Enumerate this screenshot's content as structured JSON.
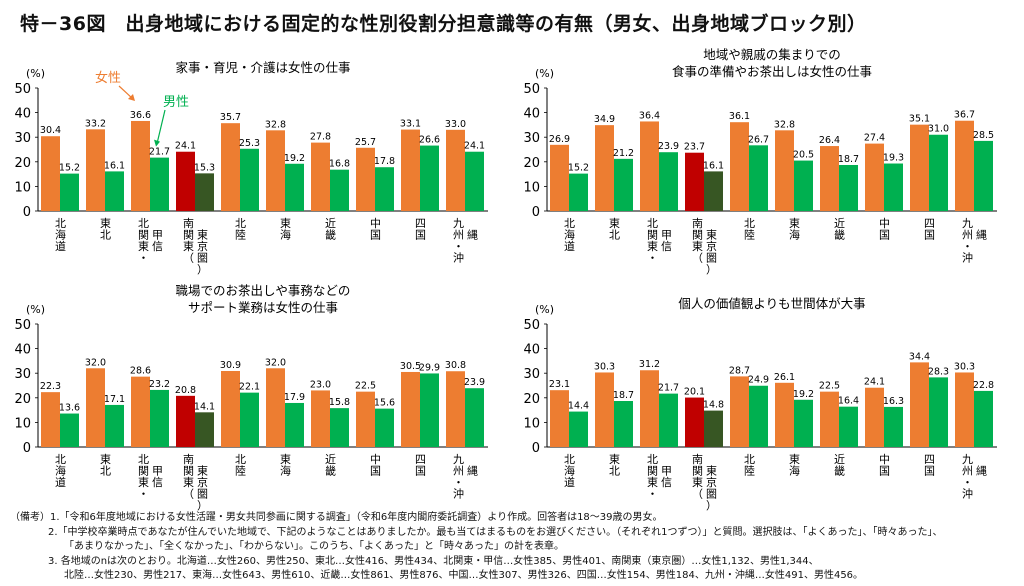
{
  "title": "特－36図　出身地域における固定的な性別役割分担意識等の有無（男女、出身地域ブロック別）",
  "colors": {
    "female": "#ed7d31",
    "male": "#00b050",
    "female_kanto": "#c00000",
    "male_kanto": "#375623"
  },
  "legend": {
    "female": "女性",
    "male": "男性"
  },
  "categories": [
    [
      "北",
      "海",
      "道"
    ],
    [
      "東",
      "北"
    ],
    [
      "北",
      "関",
      "東",
      "・",
      "甲",
      "信"
    ],
    [
      "南",
      "関",
      "東",
      "（",
      "東",
      "京",
      "圏",
      "）"
    ],
    [
      "北",
      "陸"
    ],
    [
      "東",
      "海"
    ],
    [
      "近",
      "畿"
    ],
    [
      "中",
      "国"
    ],
    [
      "四",
      "国"
    ],
    [
      "九",
      "州",
      "・",
      "沖",
      "縄"
    ]
  ],
  "chart_data": [
    {
      "type": "bar",
      "title": [
        "家事・育児・介護は女性の仕事"
      ],
      "unit": "(%)",
      "ylim": [
        0,
        50
      ],
      "yticks": [
        "0",
        "10",
        "20",
        "30",
        "40",
        "50"
      ],
      "series": [
        {
          "name": "女性",
          "values": [
            30.4,
            33.2,
            36.6,
            24.1,
            35.7,
            32.8,
            27.8,
            25.7,
            33.1,
            33.0
          ],
          "labels": [
            "30.4",
            "33.2",
            "36.6",
            "24.1",
            "35.7",
            "32.8",
            "27.8",
            "25.7",
            "33.1",
            "33.0"
          ]
        },
        {
          "name": "男性",
          "values": [
            15.2,
            16.1,
            21.7,
            15.3,
            25.3,
            19.2,
            16.8,
            17.8,
            26.6,
            24.1
          ],
          "labels": [
            "15.2",
            "16.1",
            "21.7",
            "15.3",
            "25.3",
            "19.2",
            "16.8",
            "17.8",
            "26.6",
            "24.1"
          ]
        }
      ]
    },
    {
      "type": "bar",
      "title": [
        "地域や親戚の集まりでの",
        "食事の準備やお茶出しは女性の仕事"
      ],
      "unit": "(%)",
      "ylim": [
        0,
        50
      ],
      "yticks": [
        "0",
        "10",
        "20",
        "30",
        "40",
        "50"
      ],
      "series": [
        {
          "name": "女性",
          "values": [
            26.9,
            34.9,
            36.4,
            23.7,
            36.1,
            32.8,
            26.4,
            27.4,
            35.1,
            36.7
          ],
          "labels": [
            "26.9",
            "34.9",
            "36.4",
            "23.7",
            "36.1",
            "32.8",
            "26.4",
            "27.4",
            "35.1",
            "36.7"
          ]
        },
        {
          "name": "男性",
          "values": [
            15.2,
            21.2,
            23.9,
            16.1,
            26.7,
            20.5,
            18.7,
            19.3,
            31.0,
            28.5
          ],
          "labels": [
            "15.2",
            "21.2",
            "23.9",
            "16.1",
            "26.7",
            "20.5",
            "18.7",
            "19.3",
            "31.0",
            "28.5"
          ]
        }
      ]
    },
    {
      "type": "bar",
      "title": [
        "職場でのお茶出しや事務などの",
        "サポート業務は女性の仕事"
      ],
      "unit": "(%)",
      "ylim": [
        0,
        50
      ],
      "yticks": [
        "0",
        "10",
        "20",
        "30",
        "40",
        "50"
      ],
      "series": [
        {
          "name": "女性",
          "values": [
            22.3,
            32.0,
            28.6,
            20.8,
            30.9,
            32.0,
            23.0,
            22.5,
            30.5,
            30.8
          ],
          "labels": [
            "22.3",
            "32.0",
            "28.6",
            "20.8",
            "30.9",
            "32.0",
            "23.0",
            "22.5",
            "30.5",
            "30.8"
          ]
        },
        {
          "name": "男性",
          "values": [
            13.6,
            17.1,
            23.2,
            14.1,
            22.1,
            17.9,
            15.8,
            15.6,
            29.9,
            23.9
          ],
          "labels": [
            "13.6",
            "17.1",
            "23.2",
            "14.1",
            "22.1",
            "17.9",
            "15.8",
            "15.6",
            "29.9",
            "23.9"
          ]
        }
      ]
    },
    {
      "type": "bar",
      "title": [
        "個人の価値観よりも世間体が大事"
      ],
      "unit": "(%)",
      "ylim": [
        0,
        50
      ],
      "yticks": [
        "0",
        "10",
        "20",
        "30",
        "40",
        "50"
      ],
      "series": [
        {
          "name": "女性",
          "values": [
            23.1,
            30.3,
            31.2,
            20.1,
            28.7,
            26.1,
            22.5,
            24.1,
            34.4,
            30.3
          ],
          "labels": [
            "23.1",
            "30.3",
            "31.2",
            "20.1",
            "28.7",
            "26.1",
            "22.5",
            "24.1",
            "34.4",
            "30.3"
          ]
        },
        {
          "name": "男性",
          "values": [
            14.4,
            18.7,
            21.7,
            14.8,
            24.9,
            19.2,
            16.4,
            16.3,
            28.3,
            22.8
          ],
          "labels": [
            "14.4",
            "18.7",
            "21.7",
            "14.8",
            "24.9",
            "19.2",
            "16.4",
            "16.3",
            "28.3",
            "22.8"
          ]
        }
      ]
    }
  ],
  "notes": [
    "（備考）1.「令和6年度地域における女性活躍・男女共同参画に関する調査」（令和6年度内閣府委託調査）より作成。回答者は18～39歳の男女。",
    "2.「中学校卒業時点であなたが住んでいた地域で、下記のようなことはありましたか。最も当てはまるものをお選びください。（それぞれ1つずつ）」と質問。選択肢は、「よくあった」、「時々あった」、",
    "「あまりなかった」、「全くなかった」、「わからない」。このうち、「よくあった」と「時々あった」の計を表章。",
    "3. 各地域のnは次のとおり。北海道…女性260、男性250、東北…女性416、男性434、北関東・甲信…女性385、男性401、南関東（東京圏）…女性1,132、男性1,344、",
    "北陸…女性230、男性217、東海…女性643、男性610、近畿…女性861、男性876、中国…女性307、男性326、四国…女性154、男性184、九州・沖縄…女性491、男性456。"
  ]
}
